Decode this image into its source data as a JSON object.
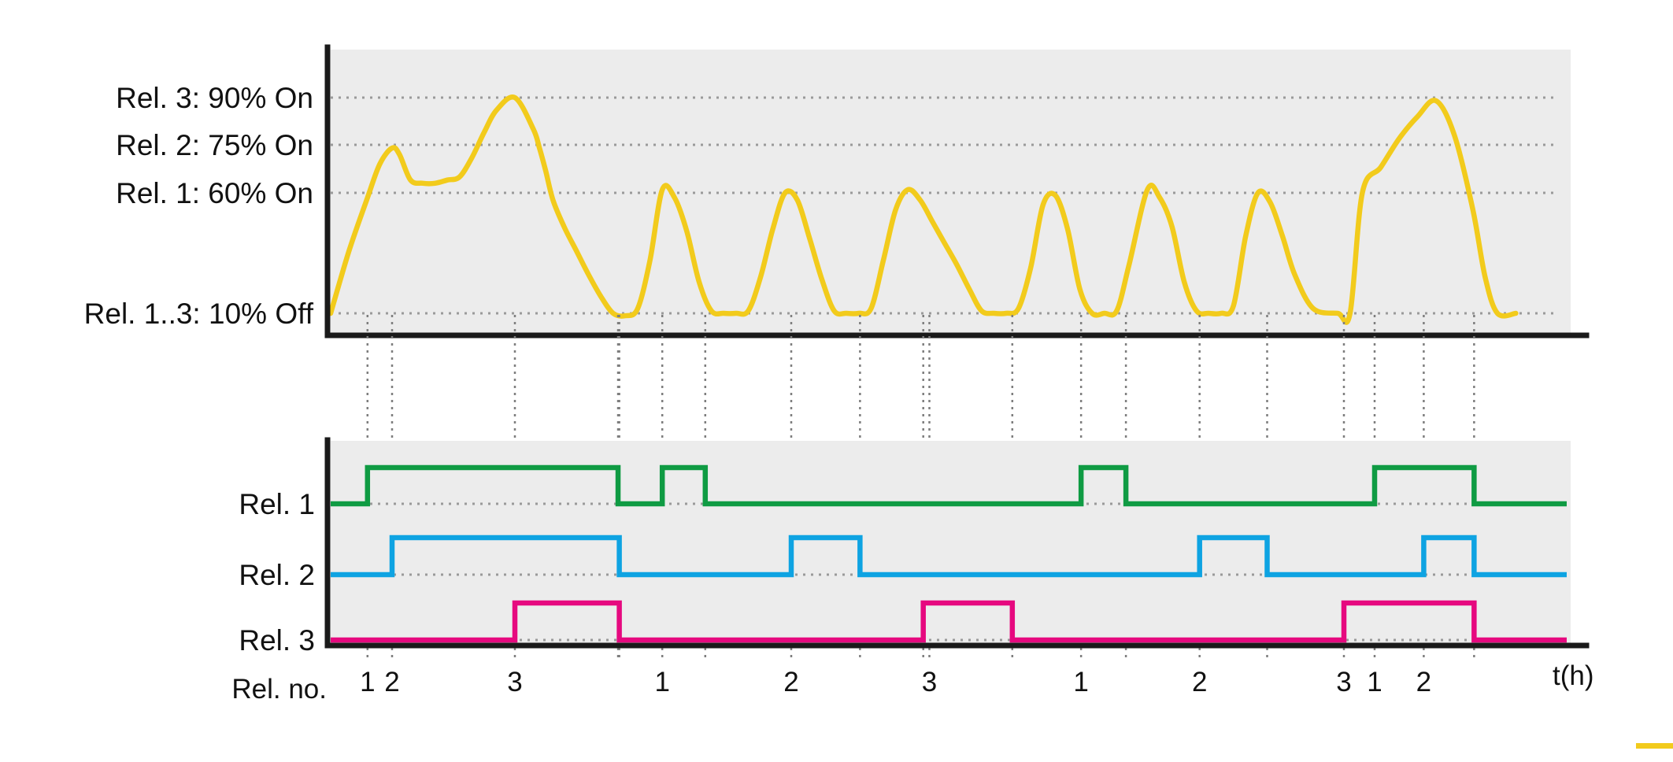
{
  "colors": {
    "panel": "#ececec",
    "axis": "#1a1a1a",
    "measurement": "#f2cb1c",
    "rel1": "#0f9b43",
    "rel2": "#0ea3e2",
    "rel3": "#e6097f",
    "marker": "#f2cb1c"
  },
  "top_chart": {
    "thresholds": [
      {
        "label": "Rel. 3: 90% On",
        "value": 90
      },
      {
        "label": "Rel. 2: 75% On",
        "value": 75
      },
      {
        "label": "Rel. 1: 60% On",
        "value": 60
      },
      {
        "label": "Rel. 1..3: 10% Off",
        "value": 10
      }
    ]
  },
  "bottom_chart": {
    "relay_labels": [
      "Rel. 1",
      "Rel. 2",
      "Rel. 3"
    ],
    "x_title": "Rel. no.",
    "x_unit_label": "t(h)",
    "switch_markers": [
      "1",
      "2",
      "3",
      "1",
      "2",
      "3",
      "1",
      "2",
      "3",
      "1",
      "2"
    ]
  },
  "chart_data": {
    "type": "line",
    "x_unit": "t(h)",
    "thresholds_percent": {
      "rel1_on": 60,
      "rel2_on": 75,
      "rel3_on": 90,
      "all_off": 10
    },
    "measurement": {
      "x": [
        0,
        30,
        60,
        80,
        100,
        112,
        130,
        150,
        170,
        190,
        210,
        230,
        250,
        270,
        300,
        330,
        340,
        350,
        362,
        380,
        400,
        420,
        440,
        460,
        480,
        500,
        520,
        540,
        560,
        580,
        600,
        620,
        640,
        660,
        680,
        700,
        720,
        740,
        760,
        780,
        800,
        820,
        840,
        860,
        880,
        900,
        920,
        940,
        960,
        980,
        1000,
        1020,
        1040,
        1060,
        1080,
        1100,
        1120,
        1140,
        1160,
        1180,
        1200,
        1220,
        1240,
        1260,
        1280,
        1300,
        1330,
        1350,
        1370,
        1390,
        1410,
        1430,
        1450,
        1470,
        1490,
        1510,
        1530,
        1550,
        1570,
        1600,
        1640,
        1660,
        1680,
        1710,
        1740,
        1770,
        1800,
        1830,
        1860,
        1880,
        1900,
        1930
      ],
      "y": [
        10,
        36,
        58,
        69,
        74,
        72,
        64,
        63,
        63,
        64,
        65,
        71,
        79,
        86,
        90,
        80,
        74,
        67,
        57,
        46,
        36,
        26,
        17,
        10,
        9,
        12,
        32,
        61,
        58,
        44,
        23,
        11,
        10,
        10,
        11,
        25,
        45,
        60,
        57,
        41,
        24,
        11,
        10,
        10,
        12,
        32,
        53,
        61,
        57,
        48,
        39,
        30,
        20,
        11,
        10,
        10,
        12,
        29,
        55,
        59,
        45,
        20,
        10,
        10,
        11,
        30,
        61,
        58,
        46,
        23,
        11,
        10,
        10,
        13,
        42,
        60,
        56,
        42,
        26,
        12,
        10,
        10,
        60,
        68,
        77,
        84,
        89,
        78,
        53,
        25,
        10,
        10
      ]
    },
    "switch_times": [
      {
        "t": 60,
        "relay": "1"
      },
      {
        "t": 100,
        "relay": "2"
      },
      {
        "t": 300,
        "relay": "3"
      },
      {
        "t": 540,
        "relay": "1"
      },
      {
        "t": 750,
        "relay": "2"
      },
      {
        "t": 975,
        "relay": "3"
      },
      {
        "t": 1222,
        "relay": "1"
      },
      {
        "t": 1415,
        "relay": "2"
      },
      {
        "t": 1650,
        "relay": "3"
      },
      {
        "t": 1700,
        "relay": "1"
      },
      {
        "t": 1780,
        "relay": "2"
      }
    ],
    "series": [
      {
        "name": "Rel. 1",
        "intervals": [
          [
            60,
            468
          ],
          [
            540,
            610
          ],
          [
            1222,
            1295
          ],
          [
            1700,
            1862
          ]
        ]
      },
      {
        "name": "Rel. 2",
        "intervals": [
          [
            100,
            470
          ],
          [
            750,
            862
          ],
          [
            1415,
            1525
          ],
          [
            1780,
            1862
          ]
        ]
      },
      {
        "name": "Rel. 3",
        "intervals": [
          [
            300,
            470
          ],
          [
            965,
            1110
          ],
          [
            1650,
            1862
          ]
        ]
      }
    ],
    "x_range": [
      0,
      1930
    ]
  }
}
